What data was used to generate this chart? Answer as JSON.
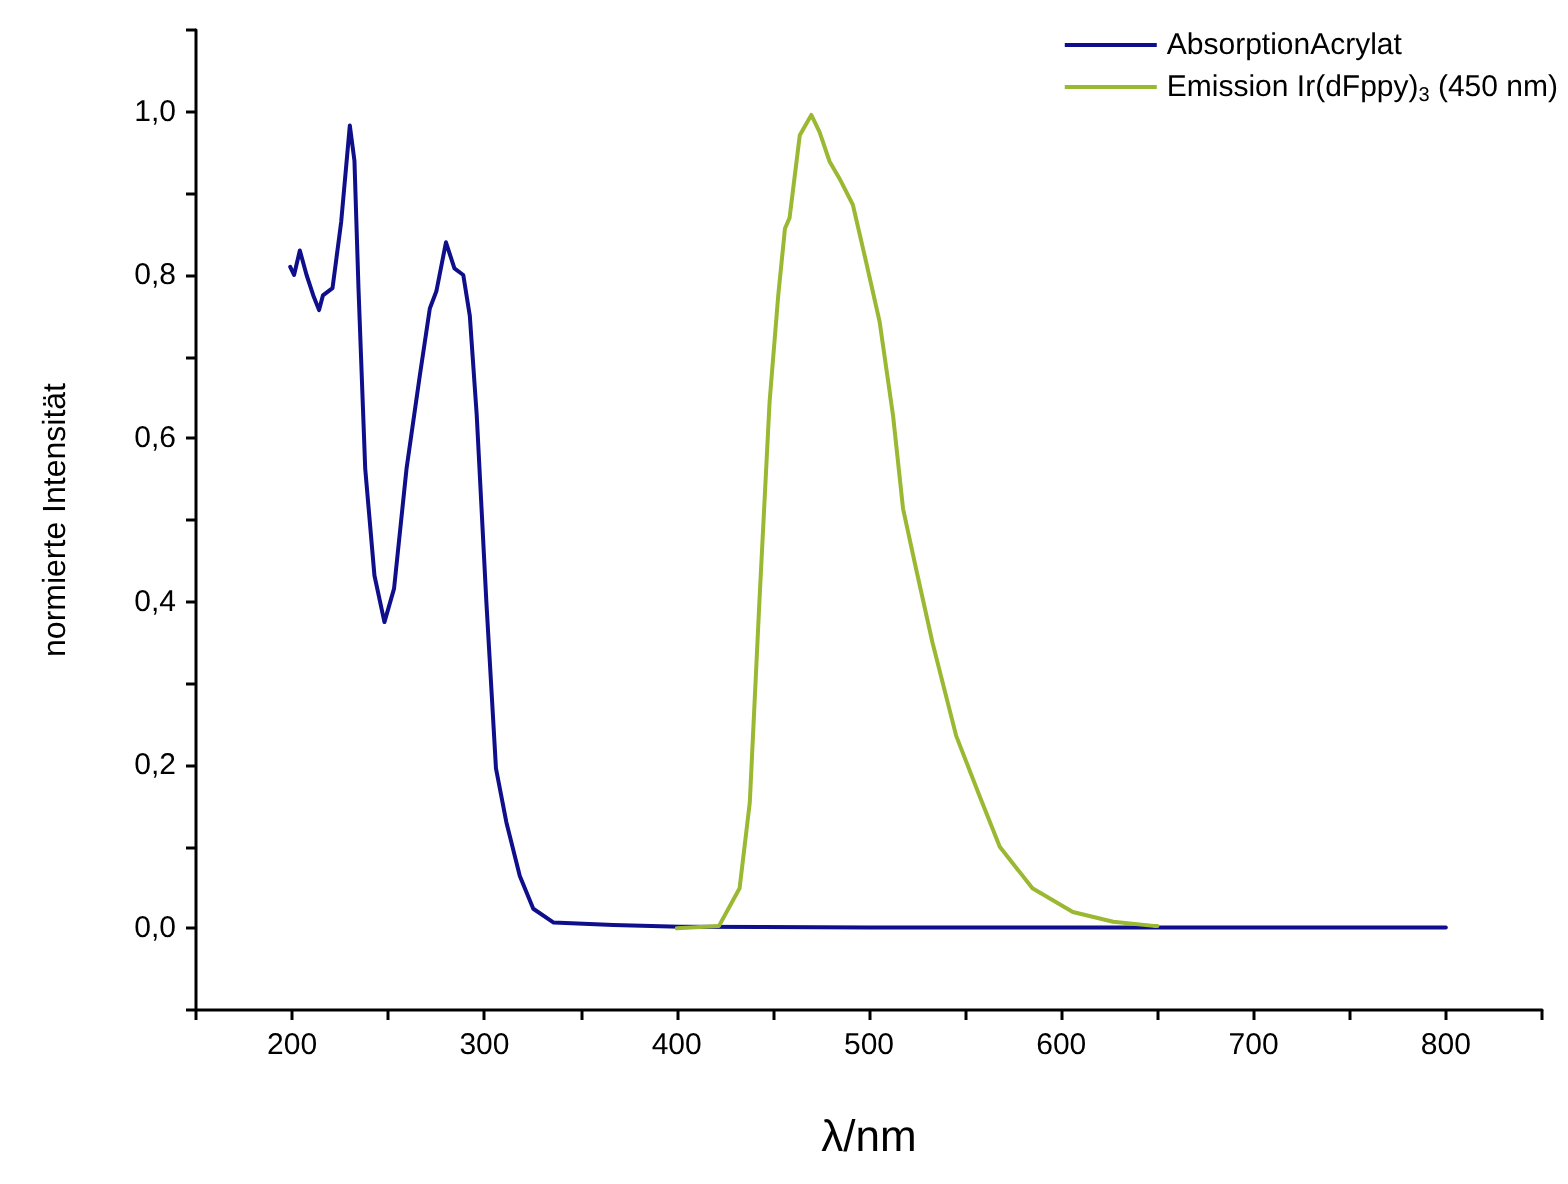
{
  "chart_data": {
    "type": "line",
    "xlabel": "λ/nm",
    "ylabel": "normierte Intensität",
    "xlim": [
      150,
      850
    ],
    "xticks": [
      {
        "value": 150,
        "label": null
      },
      200,
      {
        "value": 250,
        "label": null
      },
      300,
      {
        "value": 350,
        "label": null
      },
      400,
      {
        "value": 450,
        "label": null
      },
      500,
      {
        "value": 550,
        "label": null
      },
      600,
      {
        "value": 650,
        "label": null
      },
      700,
      {
        "value": 750,
        "label": null
      },
      800,
      {
        "value": 850,
        "label": null
      }
    ],
    "ylim": [
      -0.1,
      1.1
    ],
    "yticks": [
      {
        "value": -0.1,
        "label": null
      },
      {
        "value": 0,
        "label": "0,0"
      },
      {
        "value": 0.1,
        "label": null
      },
      {
        "value": 0.2,
        "label": "0,2"
      },
      {
        "value": 0.3,
        "label": null
      },
      {
        "value": 0.4,
        "label": "0,4"
      },
      {
        "value": 0.5,
        "label": null
      },
      {
        "value": 0.6,
        "label": "0,6"
      },
      {
        "value": 0.7,
        "label": null
      },
      {
        "value": 0.8,
        "label": "0,8"
      },
      {
        "value": 0.9,
        "label": null
      },
      {
        "value": 1.0,
        "label": "1,0"
      },
      {
        "value": 1.1,
        "label": null
      }
    ],
    "grid": false,
    "legend": "top right",
    "marker": "none",
    "line_style": "solid",
    "series": [
      {
        "name": "AbsorptionAcrylat",
        "color": "#0f0f8c",
        "x": [
          199,
          201,
          204,
          207.5,
          211,
          214,
          216,
          221,
          223,
          225.5,
          230,
          232.4,
          234.5,
          238,
          242.8,
          248,
          253,
          259.5,
          266.4,
          271.6,
          275,
          280,
          284.4,
          289,
          292.4,
          296,
          301,
          306,
          311.4,
          318.4,
          325.4,
          336,
          367,
          401.5,
          500,
          600,
          700,
          800
        ],
        "values": [
          0.81,
          0.8,
          0.83,
          0.8,
          0.775,
          0.757,
          0.775,
          0.784,
          0.82,
          0.865,
          0.983,
          0.94,
          0.784,
          0.563,
          0.432,
          0.375,
          0.416,
          0.563,
          0.677,
          0.759,
          0.78,
          0.84,
          0.808,
          0.8,
          0.75,
          0.628,
          0.4,
          0.196,
          0.13,
          0.064,
          0.024,
          0.007,
          0.004,
          0.002,
          0.001,
          0.001,
          0.001,
          0.001
        ]
      },
      {
        "name": "Emission Ir(dFppy)$_{3}$ (450 nm)",
        "color": "#9ab832",
        "x": [
          400,
          422,
          432.7,
          438,
          443,
          448.3,
          452.8,
          456.3,
          458.7,
          464,
          470,
          474.3,
          479.5,
          484.7,
          491.6,
          498.5,
          505.5,
          512.5,
          517.7,
          524.5,
          533,
          545.3,
          557.5,
          568,
          585,
          606,
          627,
          648,
          650
        ],
        "values": [
          0,
          0.003,
          0.049,
          0.154,
          0.4,
          0.645,
          0.775,
          0.857,
          0.87,
          0.971,
          0.996,
          0.975,
          0.939,
          0.918,
          0.886,
          0.816,
          0.743,
          0.628,
          0.514,
          0.44,
          0.35,
          0.236,
          0.162,
          0.1,
          0.049,
          0.02,
          0.008,
          0.003,
          0.003
        ]
      }
    ]
  }
}
